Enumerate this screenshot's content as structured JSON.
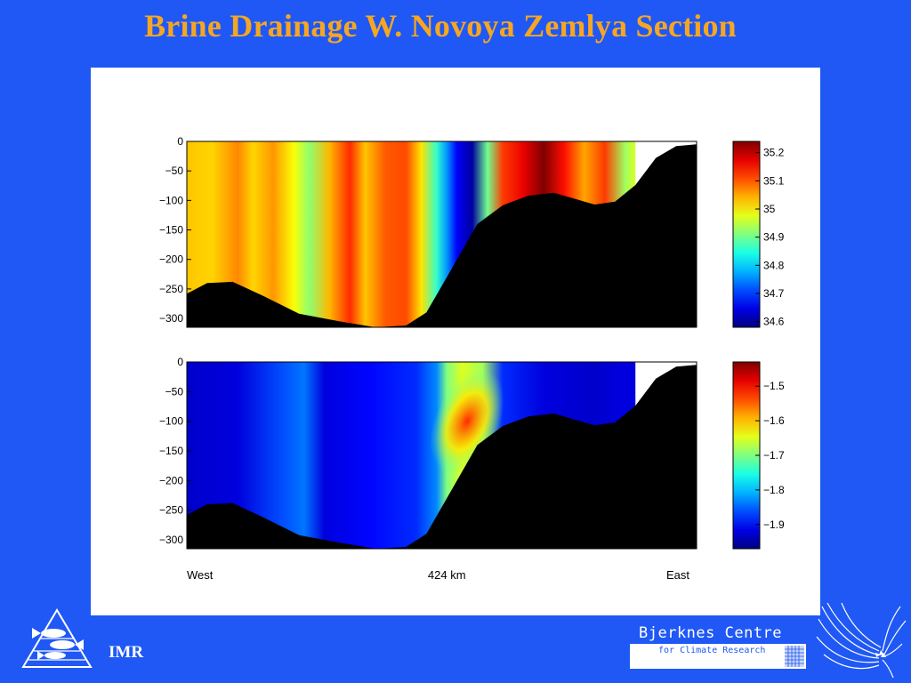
{
  "slide": {
    "title": "Brine Drainage W. Novoya Zemlya Section",
    "imr_label": "IMR",
    "bjerknes_name": "Bjerknes Centre",
    "bjerknes_sub": "for Climate Research",
    "logos": [
      "imr-fish-triangle-logo",
      "bjerknes-swirl-logo"
    ]
  },
  "chart_data": [
    {
      "type": "heatmap",
      "variable_shown": "salinity",
      "colorbar_ticks": [
        35.2,
        35.1,
        35,
        34.9,
        34.8,
        34.7,
        34.6
      ],
      "color_range": [
        34.58,
        35.24
      ],
      "y_ticks": [
        0,
        -50,
        -100,
        -150,
        -200,
        -250,
        -300
      ],
      "ylim": [
        -315,
        0
      ],
      "x_labels": [
        "West",
        "424 km",
        "East"
      ],
      "seabed_depth": [
        [
          0,
          -258
        ],
        [
          0.04,
          -240
        ],
        [
          0.09,
          -238
        ],
        [
          0.15,
          -262
        ],
        [
          0.22,
          -292
        ],
        [
          0.3,
          -305
        ],
        [
          0.37,
          -315
        ],
        [
          0.43,
          -312
        ],
        [
          0.47,
          -290
        ],
        [
          0.52,
          -215
        ],
        [
          0.57,
          -140
        ],
        [
          0.62,
          -108
        ],
        [
          0.67,
          -92
        ],
        [
          0.72,
          -87
        ],
        [
          0.76,
          -97
        ],
        [
          0.8,
          -107
        ],
        [
          0.84,
          -102
        ],
        [
          0.88,
          -74
        ],
        [
          0.92,
          -28
        ],
        [
          0.96,
          -8
        ],
        [
          1.0,
          -5
        ]
      ],
      "columns": [
        {
          "x": 0.0,
          "v": 35.03
        },
        {
          "x": 0.05,
          "v": 35.02
        },
        {
          "x": 0.1,
          "v": 35.07
        },
        {
          "x": 0.13,
          "v": 35.02
        },
        {
          "x": 0.17,
          "v": 35.06
        },
        {
          "x": 0.21,
          "v": 34.99
        },
        {
          "x": 0.24,
          "v": 34.92
        },
        {
          "x": 0.28,
          "v": 35.04
        },
        {
          "x": 0.32,
          "v": 35.13
        },
        {
          "x": 0.35,
          "v": 35.03
        },
        {
          "x": 0.39,
          "v": 35.1
        },
        {
          "x": 0.43,
          "v": 35.11
        },
        {
          "x": 0.46,
          "v": 35.01
        },
        {
          "x": 0.49,
          "v": 34.86
        },
        {
          "x": 0.51,
          "v": 34.76
        },
        {
          "x": 0.53,
          "v": 34.66
        },
        {
          "x": 0.56,
          "v": 34.6
        },
        {
          "x": 0.59,
          "v": 34.9
        },
        {
          "x": 0.62,
          "v": 35.12
        },
        {
          "x": 0.66,
          "v": 35.17
        },
        {
          "x": 0.7,
          "v": 35.24
        },
        {
          "x": 0.74,
          "v": 35.15
        },
        {
          "x": 0.78,
          "v": 35.05
        },
        {
          "x": 0.82,
          "v": 35.12
        },
        {
          "x": 0.86,
          "v": 34.93
        },
        {
          "x": 0.88,
          "v": 34.97
        }
      ],
      "no_data_from_x": 0.88
    },
    {
      "type": "heatmap",
      "variable_shown": "temperature",
      "colorbar_ticks": [
        -1.5,
        -1.6,
        -1.7,
        -1.8,
        -1.9
      ],
      "color_range": [
        -1.97,
        -1.43
      ],
      "y_ticks": [
        0,
        -50,
        -100,
        -150,
        -200,
        -250,
        -300
      ],
      "ylim": [
        -315,
        0
      ],
      "x_labels": [
        "West",
        "424 km",
        "East"
      ],
      "seabed_depth": [
        [
          0,
          -258
        ],
        [
          0.04,
          -240
        ],
        [
          0.09,
          -238
        ],
        [
          0.15,
          -262
        ],
        [
          0.22,
          -292
        ],
        [
          0.3,
          -305
        ],
        [
          0.37,
          -315
        ],
        [
          0.43,
          -312
        ],
        [
          0.47,
          -290
        ],
        [
          0.52,
          -215
        ],
        [
          0.57,
          -140
        ],
        [
          0.62,
          -108
        ],
        [
          0.67,
          -92
        ],
        [
          0.72,
          -87
        ],
        [
          0.76,
          -97
        ],
        [
          0.8,
          -107
        ],
        [
          0.84,
          -102
        ],
        [
          0.88,
          -74
        ],
        [
          0.92,
          -28
        ],
        [
          0.96,
          -8
        ],
        [
          1.0,
          -5
        ]
      ],
      "columns": [
        {
          "x": 0.0,
          "v": -1.93
        },
        {
          "x": 0.1,
          "v": -1.92
        },
        {
          "x": 0.19,
          "v": -1.86
        },
        {
          "x": 0.23,
          "v": -1.84
        },
        {
          "x": 0.27,
          "v": -1.92
        },
        {
          "x": 0.36,
          "v": -1.9
        },
        {
          "x": 0.45,
          "v": -1.88
        },
        {
          "x": 0.49,
          "v": -1.83
        },
        {
          "x": 0.51,
          "v": -1.7
        },
        {
          "x": 0.54,
          "v": -1.65
        },
        {
          "x": 0.58,
          "v": -1.68
        },
        {
          "x": 0.62,
          "v": -1.88
        },
        {
          "x": 0.7,
          "v": -1.92
        },
        {
          "x": 0.8,
          "v": -1.93
        },
        {
          "x": 0.85,
          "v": -1.92
        },
        {
          "x": 0.88,
          "v": -1.92
        }
      ],
      "warm_core": {
        "x": 0.55,
        "depth": -100,
        "v": -1.52
      },
      "no_data_from_x": 0.88
    }
  ]
}
